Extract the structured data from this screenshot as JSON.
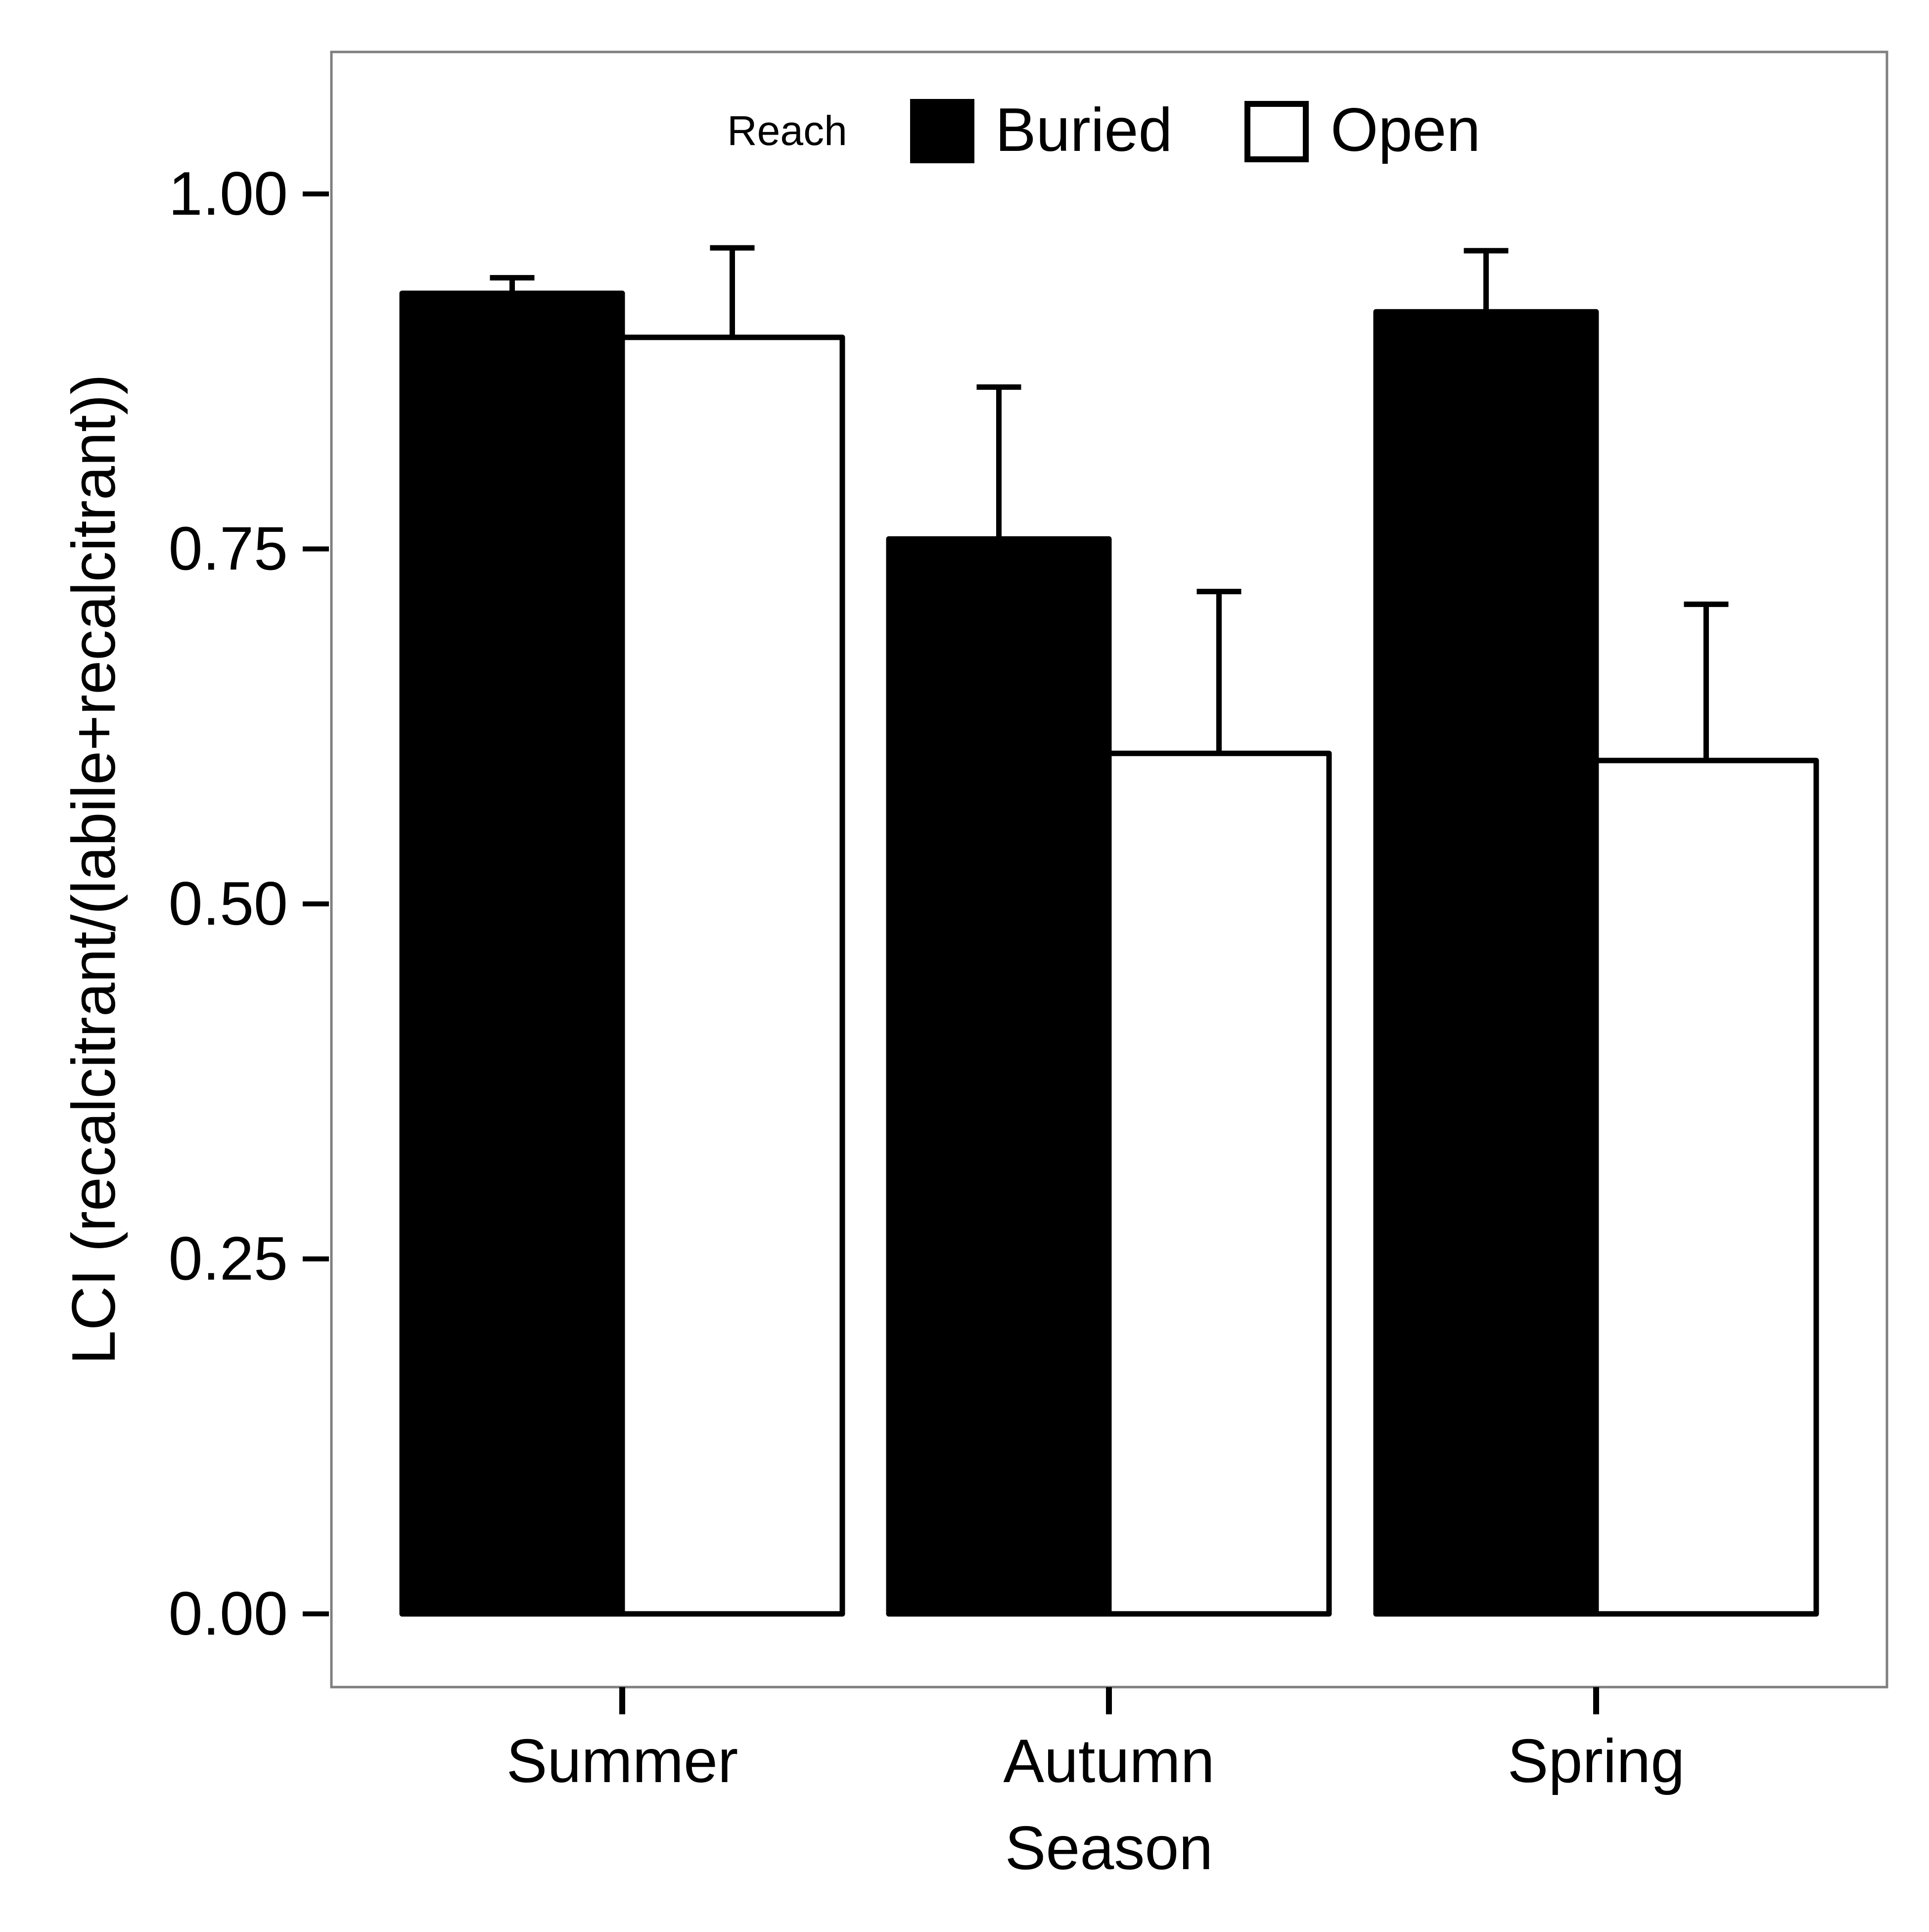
{
  "chart_data": {
    "type": "bar",
    "title": "",
    "xlabel": "Season",
    "ylabel": "LCI (recalcitrant/(labile+recalcitrant))",
    "categories": [
      "Summer",
      "Autumn",
      "Spring"
    ],
    "ylim": [
      -0.05,
      1.1
    ],
    "yticks": [
      0.0,
      0.25,
      0.5,
      0.75,
      1.0
    ],
    "ytick_labels": [
      "0.00",
      "0.25",
      "0.50",
      "0.75",
      "1.00"
    ],
    "grid": false,
    "legend": {
      "title": "Reach",
      "position": "top-center",
      "entries": [
        "Buried",
        "Open"
      ]
    },
    "series": [
      {
        "name": "Buried",
        "color": "#000000",
        "values": [
          0.93,
          0.757,
          0.917
        ],
        "error": [
          0.011,
          0.107,
          0.043
        ]
      },
      {
        "name": "Open",
        "color": "#ffffff",
        "values": [
          0.899,
          0.606,
          0.601
        ],
        "error": [
          0.063,
          0.114,
          0.11
        ]
      }
    ]
  }
}
